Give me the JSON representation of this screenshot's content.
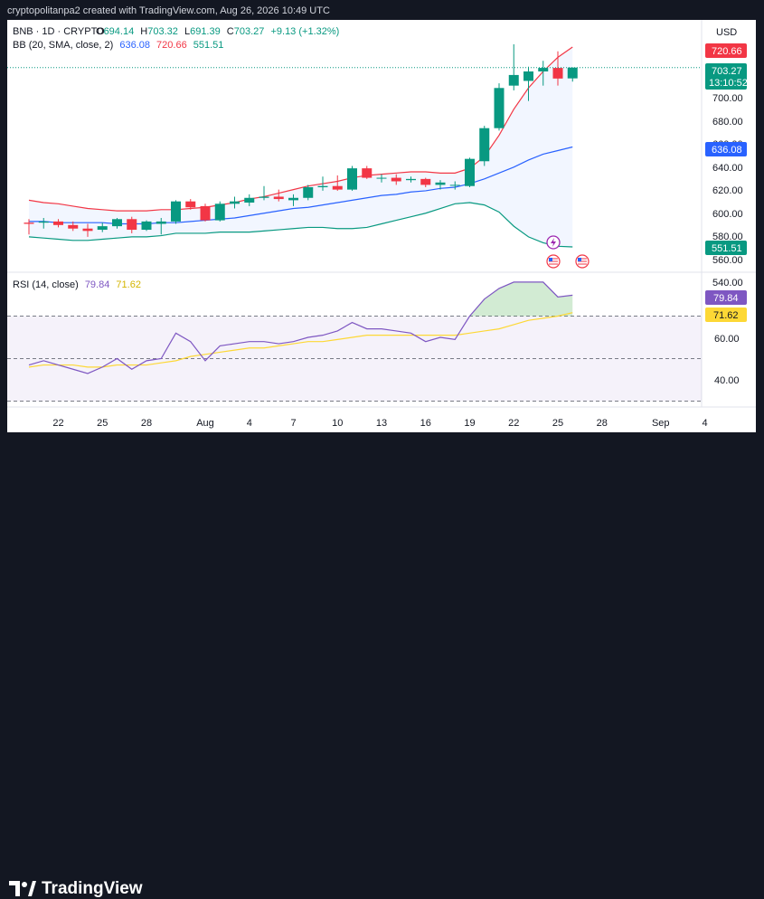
{
  "header_text": "cryptopolitanpa2 created with TradingView.com, Aug 26, 2026 10:49 UTC",
  "legend": {
    "symbol": "BNB · 1D · CRYPTO",
    "open_label": "O",
    "open": "694.14",
    "high_label": "H",
    "high": "703.32",
    "low_label": "L",
    "low": "691.39",
    "close_label": "C",
    "close": "703.27",
    "change": "+9.13 (+1.32%)",
    "bb_label": "BB (20, SMA, close, 2)",
    "bb_values": [
      "636.08",
      "720.66",
      "551.51"
    ],
    "rsi_label": "RSI (14, close)",
    "rsi_values": [
      "79.84",
      "71.62"
    ]
  },
  "currency": "USD",
  "price_axis_ticks": [
    "700.00",
    "680.00",
    "660.00",
    "640.00",
    "620.00",
    "600.00",
    "580.00",
    "560.00",
    "540.00"
  ],
  "price_badges": {
    "upper": "720.66",
    "last": "703.27",
    "countdown": "13:10:52",
    "basis": "636.08",
    "lower": "551.51"
  },
  "rsi_axis_ticks": [
    "60.00",
    "40.00"
  ],
  "rsi_badges": {
    "rsi": "79.84",
    "ma": "71.62"
  },
  "x_axis_ticks": [
    "22",
    "25",
    "28",
    "Aug",
    "4",
    "7",
    "10",
    "13",
    "16",
    "19",
    "22",
    "25",
    "28",
    "Sep",
    "4"
  ],
  "brand": "TradingView",
  "colors": {
    "up": "#089981",
    "down": "#f23645",
    "bb_upper": "#f23645",
    "bb_basis": "#2962ff",
    "bb_lower": "#089981",
    "rsi": "#7e57c2",
    "rsi_ma": "#fdd835"
  },
  "chart_data": [
    {
      "type": "candlestick",
      "title": "BNB · 1D · CRYPTO",
      "x": [
        "Jul 20",
        "Jul 21",
        "Jul 22",
        "Jul 23",
        "Jul 24",
        "Jul 25",
        "Jul 26",
        "Jul 27",
        "Jul 28",
        "Jul 29",
        "Jul 30",
        "Jul 31",
        "Aug 1",
        "Aug 2",
        "Aug 3",
        "Aug 4",
        "Aug 5",
        "Aug 6",
        "Aug 7",
        "Aug 8",
        "Aug 9",
        "Aug 10",
        "Aug 11",
        "Aug 12",
        "Aug 13",
        "Aug 14",
        "Aug 15",
        "Aug 16",
        "Aug 17",
        "Aug 18",
        "Aug 19",
        "Aug 20",
        "Aug 21",
        "Aug 22",
        "Aug 23",
        "Aug 24",
        "Aug 25",
        "Aug 26"
      ],
      "series": [
        {
          "open": 572,
          "high": 575,
          "low": 562,
          "close": 571
        },
        {
          "open": 572,
          "high": 576,
          "low": 567,
          "close": 573
        },
        {
          "open": 573,
          "high": 575,
          "low": 568,
          "close": 570
        },
        {
          "open": 570,
          "high": 573,
          "low": 565,
          "close": 567
        },
        {
          "open": 567,
          "high": 571,
          "low": 560,
          "close": 565
        },
        {
          "open": 566,
          "high": 572,
          "low": 564,
          "close": 569
        },
        {
          "open": 569,
          "high": 576,
          "low": 567,
          "close": 575
        },
        {
          "open": 575,
          "high": 577,
          "low": 563,
          "close": 566
        },
        {
          "open": 566,
          "high": 574,
          "low": 565,
          "close": 573
        },
        {
          "open": 571,
          "high": 576,
          "low": 562,
          "close": 573
        },
        {
          "open": 573,
          "high": 591,
          "low": 571,
          "close": 590
        },
        {
          "open": 590,
          "high": 592,
          "low": 583,
          "close": 585
        },
        {
          "open": 586,
          "high": 588,
          "low": 573,
          "close": 574
        },
        {
          "open": 574,
          "high": 590,
          "low": 573,
          "close": 588
        },
        {
          "open": 588,
          "high": 594,
          "low": 584,
          "close": 590
        },
        {
          "open": 589,
          "high": 596,
          "low": 586,
          "close": 593
        },
        {
          "open": 593,
          "high": 603,
          "low": 591,
          "close": 594
        },
        {
          "open": 594,
          "high": 600,
          "low": 590,
          "close": 592
        },
        {
          "open": 591,
          "high": 596,
          "low": 586,
          "close": 593
        },
        {
          "open": 593,
          "high": 604,
          "low": 591,
          "close": 602
        },
        {
          "open": 602,
          "high": 611,
          "low": 599,
          "close": 603
        },
        {
          "open": 603,
          "high": 612,
          "low": 599,
          "close": 600
        },
        {
          "open": 600,
          "high": 620,
          "low": 599,
          "close": 618
        },
        {
          "open": 618,
          "high": 620,
          "low": 609,
          "close": 610
        },
        {
          "open": 610,
          "high": 613,
          "low": 606,
          "close": 610
        },
        {
          "open": 610,
          "high": 613,
          "low": 604,
          "close": 607
        },
        {
          "open": 608,
          "high": 611,
          "low": 606,
          "close": 609
        },
        {
          "open": 609,
          "high": 610,
          "low": 602,
          "close": 604
        },
        {
          "open": 604,
          "high": 608,
          "low": 600,
          "close": 606
        },
        {
          "open": 604,
          "high": 607,
          "low": 600,
          "close": 604
        },
        {
          "open": 603,
          "high": 627,
          "low": 602,
          "close": 626
        },
        {
          "open": 624,
          "high": 654,
          "low": 620,
          "close": 652
        },
        {
          "open": 652,
          "high": 690,
          "low": 650,
          "close": 686
        },
        {
          "open": 688,
          "high": 723,
          "low": 684,
          "close": 697
        },
        {
          "open": 692,
          "high": 704,
          "low": 675,
          "close": 700
        },
        {
          "open": 700,
          "high": 709,
          "low": 688,
          "close": 703
        },
        {
          "open": 703,
          "high": 717,
          "low": 688,
          "close": 694
        },
        {
          "open": 694.14,
          "high": 703.32,
          "low": 691.39,
          "close": 703.27
        }
      ],
      "bb_upper": [
        591,
        589,
        588,
        586,
        584,
        583,
        582,
        582,
        582,
        583,
        583,
        584,
        585,
        587,
        589,
        592,
        594,
        597,
        600,
        603,
        605,
        607,
        610,
        612,
        613,
        614,
        615,
        615,
        614,
        614,
        618,
        628,
        646,
        668,
        686,
        700,
        712,
        720.66
      ],
      "bb_basis": [
        573,
        573,
        572,
        572,
        572,
        572,
        571,
        571,
        571,
        572,
        572,
        573,
        574,
        575,
        576,
        578,
        580,
        582,
        584,
        585,
        587,
        589,
        591,
        593,
        595,
        596,
        598,
        599,
        601,
        602,
        605,
        609,
        614,
        619,
        625,
        630,
        633,
        636.08
      ],
      "bb_lower": [
        560,
        559,
        558,
        557,
        557,
        558,
        559,
        560,
        560,
        561,
        563,
        563,
        563,
        564,
        564,
        564,
        565,
        566,
        567,
        568,
        568,
        567,
        567,
        568,
        571,
        574,
        577,
        580,
        584,
        588,
        589,
        587,
        581,
        569,
        560,
        555,
        552,
        551.51
      ],
      "ylim": [
        533,
        725
      ]
    },
    {
      "type": "line",
      "title": "RSI (14, close)",
      "x": [
        "Jul 20",
        "Jul 21",
        "Jul 22",
        "Jul 23",
        "Jul 24",
        "Jul 25",
        "Jul 26",
        "Jul 27",
        "Jul 28",
        "Jul 29",
        "Jul 30",
        "Jul 31",
        "Aug 1",
        "Aug 2",
        "Aug 3",
        "Aug 4",
        "Aug 5",
        "Aug 6",
        "Aug 7",
        "Aug 8",
        "Aug 9",
        "Aug 10",
        "Aug 11",
        "Aug 12",
        "Aug 13",
        "Aug 14",
        "Aug 15",
        "Aug 16",
        "Aug 17",
        "Aug 18",
        "Aug 19",
        "Aug 20",
        "Aug 21",
        "Aug 22",
        "Aug 23",
        "Aug 24",
        "Aug 25",
        "Aug 26"
      ],
      "series": [
        {
          "name": "RSI",
          "values": [
            47,
            49,
            47,
            45,
            43,
            46,
            50,
            45,
            49,
            50,
            62,
            58,
            49,
            56,
            57,
            58,
            58,
            57,
            58,
            60,
            61,
            63,
            67,
            64,
            64,
            63,
            62,
            58,
            60,
            59,
            70,
            78,
            83,
            86,
            86,
            86,
            79,
            79.84
          ]
        },
        {
          "name": "RSI-based MA",
          "values": [
            46,
            47,
            47,
            47,
            46,
            46,
            47,
            47,
            47,
            48,
            49,
            51,
            52,
            53,
            54,
            55,
            55,
            56,
            57,
            58,
            58,
            59,
            60,
            61,
            61,
            61,
            61,
            61,
            61,
            61,
            62,
            63,
            64,
            66,
            68,
            69,
            70,
            71.62
          ]
        }
      ],
      "levels": [
        70,
        50,
        30
      ],
      "ylim": [
        28,
        92
      ]
    }
  ]
}
